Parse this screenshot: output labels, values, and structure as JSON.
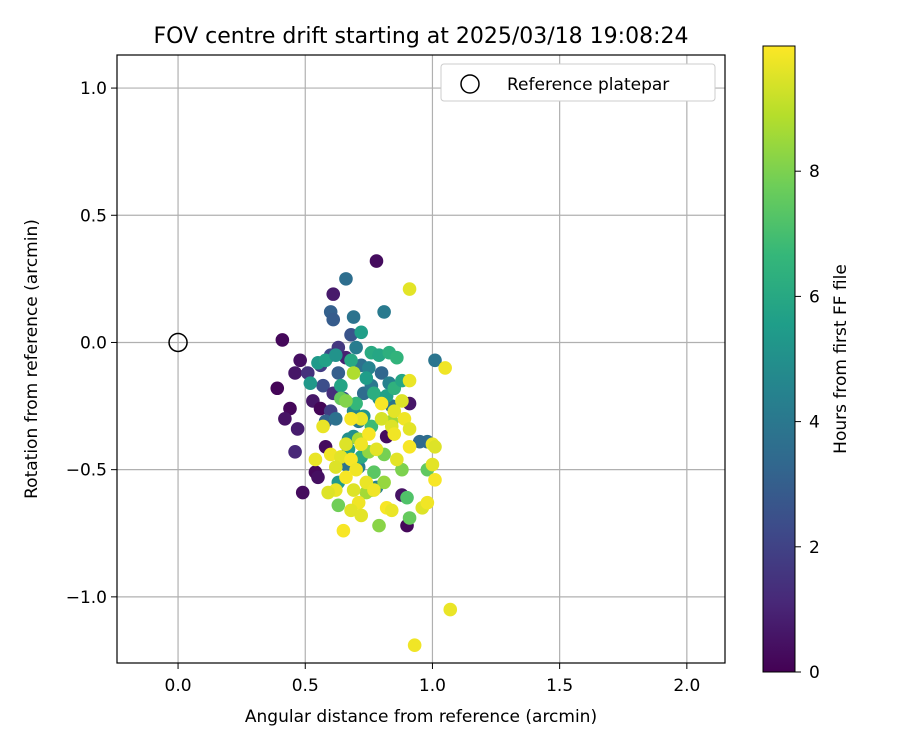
{
  "chart_data": {
    "type": "scatter",
    "title": "FOV centre drift starting at 2025/03/18 19:08:24",
    "xlabel": "Angular distance from reference (arcmin)",
    "ylabel": "Rotation from reference (arcmin)",
    "xlim": [
      -0.24,
      2.15
    ],
    "ylim": [
      -1.26,
      1.13
    ],
    "x_ticks": [
      0.0,
      0.5,
      1.0,
      1.5,
      2.0
    ],
    "x_tick_labels": [
      "0.0",
      "0.5",
      "1.0",
      "1.5",
      "2.0"
    ],
    "y_ticks": [
      1.0,
      0.5,
      0.0,
      -0.5,
      -1.0
    ],
    "y_tick_labels": [
      "1.0",
      "0.5",
      "0.0",
      "−0.5",
      "−1.0"
    ],
    "grid": true,
    "legend": {
      "placement": "top-right",
      "entries": [
        {
          "label": "Reference platepar",
          "marker": "open-circle",
          "x": 0.0,
          "y": 0.0
        }
      ]
    },
    "colorbar": {
      "label": "Hours from first FF file",
      "range": [
        0,
        10
      ],
      "ticks": [
        0,
        2,
        4,
        6,
        8
      ],
      "tick_labels": [
        "0",
        "2",
        "4",
        "6",
        "8"
      ],
      "colormap": [
        "#440154",
        "#482878",
        "#3e4989",
        "#31688e",
        "#26828e",
        "#1f9e89",
        "#35b779",
        "#6ece58",
        "#b5de2b",
        "#fde725"
      ]
    },
    "points": [
      {
        "x": 0.78,
        "y": 0.32,
        "t": 0.3
      },
      {
        "x": 0.41,
        "y": 0.01,
        "t": 0.2
      },
      {
        "x": 0.39,
        "y": -0.18,
        "t": 0.1
      },
      {
        "x": 0.48,
        "y": -0.07,
        "t": 0.4
      },
      {
        "x": 0.46,
        "y": -0.12,
        "t": 0.6
      },
      {
        "x": 0.44,
        "y": -0.26,
        "t": 0.2
      },
      {
        "x": 0.42,
        "y": -0.3,
        "t": 0.5
      },
      {
        "x": 0.47,
        "y": -0.34,
        "t": 0.8
      },
      {
        "x": 0.46,
        "y": -0.43,
        "t": 1.1
      },
      {
        "x": 0.49,
        "y": -0.59,
        "t": 0.3
      },
      {
        "x": 0.54,
        "y": -0.51,
        "t": 0.2
      },
      {
        "x": 0.55,
        "y": -0.53,
        "t": 0.4
      },
      {
        "x": 0.53,
        "y": -0.23,
        "t": 0.6
      },
      {
        "x": 0.56,
        "y": -0.26,
        "t": 0.1
      },
      {
        "x": 0.58,
        "y": -0.41,
        "t": 0.3
      },
      {
        "x": 0.61,
        "y": 0.19,
        "t": 0.7
      },
      {
        "x": 0.88,
        "y": -0.6,
        "t": 0.5
      },
      {
        "x": 0.9,
        "y": -0.72,
        "t": 0.2
      },
      {
        "x": 0.82,
        "y": -0.37,
        "t": 0.3
      },
      {
        "x": 0.91,
        "y": -0.24,
        "t": 0.6
      },
      {
        "x": 0.51,
        "y": -0.12,
        "t": 1.4
      },
      {
        "x": 0.56,
        "y": -0.09,
        "t": 1.8
      },
      {
        "x": 0.6,
        "y": -0.05,
        "t": 2.2
      },
      {
        "x": 0.63,
        "y": -0.02,
        "t": 1.6
      },
      {
        "x": 0.66,
        "y": -0.06,
        "t": 0.9
      },
      {
        "x": 0.68,
        "y": 0.03,
        "t": 2.6
      },
      {
        "x": 0.57,
        "y": -0.17,
        "t": 2.4
      },
      {
        "x": 0.61,
        "y": -0.2,
        "t": 1.3
      },
      {
        "x": 0.6,
        "y": -0.27,
        "t": 1.9
      },
      {
        "x": 0.63,
        "y": -0.12,
        "t": 3.0
      },
      {
        "x": 0.65,
        "y": -0.22,
        "t": 2.7
      },
      {
        "x": 0.58,
        "y": -0.31,
        "t": 3.2
      },
      {
        "x": 0.66,
        "y": 0.25,
        "t": 3.6
      },
      {
        "x": 0.6,
        "y": 0.12,
        "t": 3.1
      },
      {
        "x": 0.61,
        "y": 0.09,
        "t": 2.9
      },
      {
        "x": 0.69,
        "y": 0.1,
        "t": 3.8
      },
      {
        "x": 0.81,
        "y": 0.12,
        "t": 4.1
      },
      {
        "x": 1.01,
        "y": -0.07,
        "t": 3.9
      },
      {
        "x": 0.98,
        "y": -0.39,
        "t": 3.6
      },
      {
        "x": 0.95,
        "y": -0.39,
        "t": 3.4
      },
      {
        "x": 0.7,
        "y": -0.02,
        "t": 4.2
      },
      {
        "x": 0.72,
        "y": -0.09,
        "t": 3.7
      },
      {
        "x": 0.75,
        "y": -0.1,
        "t": 4.5
      },
      {
        "x": 0.73,
        "y": -0.2,
        "t": 3.5
      },
      {
        "x": 0.76,
        "y": -0.17,
        "t": 4.0
      },
      {
        "x": 0.79,
        "y": -0.22,
        "t": 4.8
      },
      {
        "x": 0.8,
        "y": -0.12,
        "t": 3.3
      },
      {
        "x": 0.83,
        "y": -0.16,
        "t": 4.4
      },
      {
        "x": 0.84,
        "y": -0.25,
        "t": 3.9
      },
      {
        "x": 0.69,
        "y": -0.27,
        "t": 4.6
      },
      {
        "x": 0.71,
        "y": -0.31,
        "t": 4.1
      },
      {
        "x": 0.62,
        "y": -0.3,
        "t": 3.7
      },
      {
        "x": 0.67,
        "y": -0.38,
        "t": 5.0
      },
      {
        "x": 0.71,
        "y": -0.49,
        "t": 4.3
      },
      {
        "x": 0.66,
        "y": -0.48,
        "t": 3.8
      },
      {
        "x": 0.78,
        "y": -0.57,
        "t": 4.5
      },
      {
        "x": 0.55,
        "y": -0.08,
        "t": 5.4
      },
      {
        "x": 0.58,
        "y": -0.07,
        "t": 5.7
      },
      {
        "x": 0.62,
        "y": -0.05,
        "t": 5.1
      },
      {
        "x": 0.72,
        "y": 0.04,
        "t": 5.6
      },
      {
        "x": 0.76,
        "y": -0.04,
        "t": 6.1
      },
      {
        "x": 0.79,
        "y": -0.05,
        "t": 5.9
      },
      {
        "x": 0.83,
        "y": -0.04,
        "t": 6.3
      },
      {
        "x": 0.86,
        "y": -0.06,
        "t": 6.5
      },
      {
        "x": 0.52,
        "y": -0.16,
        "t": 5.3
      },
      {
        "x": 0.64,
        "y": -0.17,
        "t": 5.8
      },
      {
        "x": 0.68,
        "y": -0.07,
        "t": 6.0
      },
      {
        "x": 0.74,
        "y": -0.14,
        "t": 5.5
      },
      {
        "x": 0.77,
        "y": -0.2,
        "t": 6.2
      },
      {
        "x": 0.82,
        "y": -0.21,
        "t": 5.7
      },
      {
        "x": 0.85,
        "y": -0.18,
        "t": 6.4
      },
      {
        "x": 0.88,
        "y": -0.15,
        "t": 5.9
      },
      {
        "x": 0.7,
        "y": -0.24,
        "t": 6.6
      },
      {
        "x": 0.73,
        "y": -0.29,
        "t": 5.2
      },
      {
        "x": 0.76,
        "y": -0.33,
        "t": 6.8
      },
      {
        "x": 0.67,
        "y": -0.42,
        "t": 5.6
      },
      {
        "x": 0.72,
        "y": -0.45,
        "t": 6.1
      },
      {
        "x": 0.63,
        "y": -0.55,
        "t": 5.4
      },
      {
        "x": 0.76,
        "y": -0.58,
        "t": 6.3
      },
      {
        "x": 0.69,
        "y": -0.37,
        "t": 5.0
      },
      {
        "x": 0.9,
        "y": -0.61,
        "t": 7.2
      },
      {
        "x": 0.91,
        "y": -0.69,
        "t": 7.6
      },
      {
        "x": 0.88,
        "y": -0.5,
        "t": 8.0
      },
      {
        "x": 0.79,
        "y": -0.72,
        "t": 8.2
      },
      {
        "x": 0.63,
        "y": -0.64,
        "t": 7.8
      },
      {
        "x": 0.74,
        "y": -0.59,
        "t": 8.6
      },
      {
        "x": 0.81,
        "y": -0.55,
        "t": 8.4
      },
      {
        "x": 0.77,
        "y": -0.51,
        "t": 7.4
      },
      {
        "x": 0.64,
        "y": -0.22,
        "t": 7.6
      },
      {
        "x": 0.66,
        "y": -0.23,
        "t": 8.1
      },
      {
        "x": 0.69,
        "y": -0.12,
        "t": 8.8
      },
      {
        "x": 0.81,
        "y": -0.44,
        "t": 7.9
      },
      {
        "x": 0.75,
        "y": -0.43,
        "t": 8.3
      },
      {
        "x": 0.98,
        "y": -0.5,
        "t": 7.5
      },
      {
        "x": 0.71,
        "y": -0.38,
        "t": 8.7
      },
      {
        "x": 0.84,
        "y": -0.31,
        "t": 8.5
      },
      {
        "x": 0.91,
        "y": 0.21,
        "t": 9.6
      },
      {
        "x": 1.05,
        "y": -0.1,
        "t": 9.8
      },
      {
        "x": 0.91,
        "y": -0.15,
        "t": 9.7
      },
      {
        "x": 0.88,
        "y": -0.23,
        "t": 9.5
      },
      {
        "x": 0.8,
        "y": -0.24,
        "t": 9.9
      },
      {
        "x": 0.85,
        "y": -0.27,
        "t": 9.6
      },
      {
        "x": 0.89,
        "y": -0.3,
        "t": 9.8
      },
      {
        "x": 0.8,
        "y": -0.3,
        "t": 9.4
      },
      {
        "x": 0.72,
        "y": -0.3,
        "t": 9.7
      },
      {
        "x": 0.68,
        "y": -0.3,
        "t": 9.9
      },
      {
        "x": 0.84,
        "y": -0.33,
        "t": 9.5
      },
      {
        "x": 0.85,
        "y": -0.36,
        "t": 9.8
      },
      {
        "x": 0.91,
        "y": -0.34,
        "t": 9.6
      },
      {
        "x": 0.75,
        "y": -0.36,
        "t": 9.9
      },
      {
        "x": 0.57,
        "y": -0.33,
        "t": 9.7
      },
      {
        "x": 0.66,
        "y": -0.4,
        "t": 9.5
      },
      {
        "x": 0.72,
        "y": -0.4,
        "t": 9.8
      },
      {
        "x": 0.78,
        "y": -0.42,
        "t": 9.6
      },
      {
        "x": 0.91,
        "y": -0.41,
        "t": 9.9
      },
      {
        "x": 1.0,
        "y": -0.4,
        "t": 9.7
      },
      {
        "x": 1.01,
        "y": -0.41,
        "t": 9.5
      },
      {
        "x": 0.6,
        "y": -0.44,
        "t": 9.8
      },
      {
        "x": 0.64,
        "y": -0.45,
        "t": 9.6
      },
      {
        "x": 0.68,
        "y": -0.46,
        "t": 9.9
      },
      {
        "x": 0.54,
        "y": -0.46,
        "t": 9.7
      },
      {
        "x": 0.62,
        "y": -0.49,
        "t": 9.5
      },
      {
        "x": 0.7,
        "y": -0.5,
        "t": 9.8
      },
      {
        "x": 0.86,
        "y": -0.46,
        "t": 9.6
      },
      {
        "x": 0.66,
        "y": -0.53,
        "t": 9.9
      },
      {
        "x": 0.74,
        "y": -0.55,
        "t": 9.7
      },
      {
        "x": 0.69,
        "y": -0.58,
        "t": 9.5
      },
      {
        "x": 0.77,
        "y": -0.58,
        "t": 9.8
      },
      {
        "x": 1.0,
        "y": -0.48,
        "t": 9.6
      },
      {
        "x": 1.01,
        "y": -0.54,
        "t": 9.9
      },
      {
        "x": 0.62,
        "y": -0.58,
        "t": 9.7
      },
      {
        "x": 0.59,
        "y": -0.59,
        "t": 9.5
      },
      {
        "x": 0.71,
        "y": -0.63,
        "t": 9.8
      },
      {
        "x": 0.68,
        "y": -0.66,
        "t": 9.6
      },
      {
        "x": 0.82,
        "y": -0.65,
        "t": 9.9
      },
      {
        "x": 0.84,
        "y": -0.66,
        "t": 9.7
      },
      {
        "x": 0.96,
        "y": -0.65,
        "t": 9.5
      },
      {
        "x": 0.98,
        "y": -0.63,
        "t": 9.8
      },
      {
        "x": 0.72,
        "y": -0.68,
        "t": 9.6
      },
      {
        "x": 0.65,
        "y": -0.74,
        "t": 9.9
      },
      {
        "x": 1.07,
        "y": -1.05,
        "t": 9.7
      },
      {
        "x": 0.93,
        "y": -1.19,
        "t": 9.8
      }
    ]
  }
}
